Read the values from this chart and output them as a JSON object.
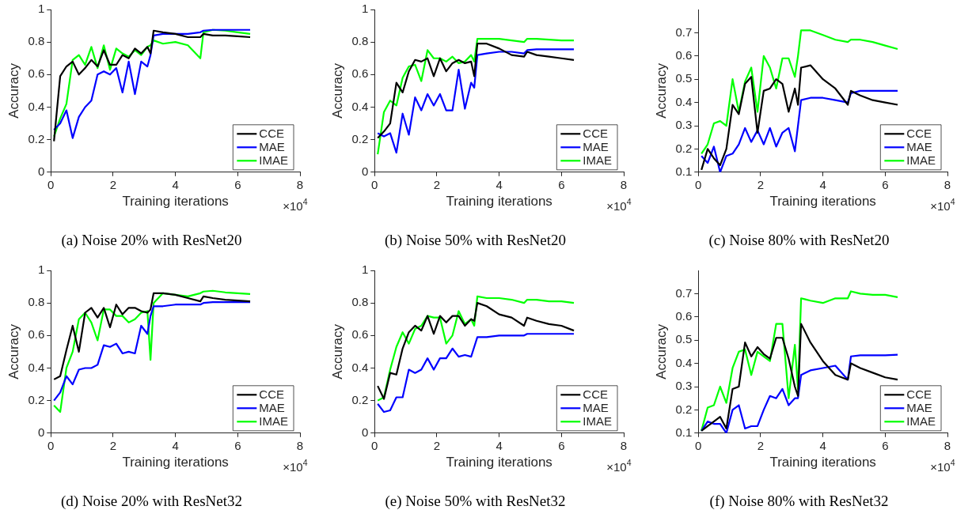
{
  "chart_data": [
    {
      "type": "line",
      "title": "(a) Noise 20% with ResNet20",
      "xlabel": "Training iterations",
      "ylabel": "Accuracy",
      "annotations": [
        "×10$^{4}$"
      ],
      "xlim": [
        0,
        8
      ],
      "xticks": [
        0,
        2,
        4,
        6,
        8
      ],
      "ylim": [
        0,
        1
      ],
      "yticks": [
        0,
        0.2,
        0.4,
        0.6,
        0.8,
        1
      ],
      "grid": false,
      "legend": "bottom right",
      "marker": "none",
      "line_style": "solid",
      "x": [
        0.1,
        0.3,
        0.5,
        0.7,
        0.9,
        1.1,
        1.3,
        1.5,
        1.7,
        1.9,
        2.1,
        2.3,
        2.5,
        2.7,
        2.9,
        3.1,
        3.2,
        3.3,
        3.6,
        4.0,
        4.4,
        4.8,
        4.9,
        5.2,
        5.6,
        6.0,
        6.4
      ],
      "series": [
        {
          "name": "CCE",
          "color": "#000000",
          "values": [
            0.19,
            0.59,
            0.65,
            0.68,
            0.6,
            0.64,
            0.69,
            0.65,
            0.75,
            0.66,
            0.66,
            0.72,
            0.7,
            0.76,
            0.73,
            0.77,
            0.73,
            0.87,
            0.86,
            0.85,
            0.83,
            0.83,
            0.85,
            0.84,
            0.84,
            0.835,
            0.83
          ]
        },
        {
          "name": "MAE",
          "color": "#0000ff",
          "values": [
            0.26,
            0.3,
            0.38,
            0.21,
            0.34,
            0.4,
            0.44,
            0.6,
            0.62,
            0.6,
            0.64,
            0.49,
            0.68,
            0.48,
            0.68,
            0.65,
            0.72,
            0.84,
            0.85,
            0.85,
            0.85,
            0.86,
            0.87,
            0.875,
            0.875,
            0.875,
            0.875
          ]
        },
        {
          "name": "IMAE",
          "color": "#00ff00",
          "values": [
            0.22,
            0.33,
            0.42,
            0.69,
            0.72,
            0.66,
            0.77,
            0.64,
            0.78,
            0.63,
            0.76,
            0.73,
            0.71,
            0.75,
            0.72,
            0.77,
            0.78,
            0.81,
            0.79,
            0.8,
            0.78,
            0.7,
            0.86,
            0.875,
            0.87,
            0.86,
            0.85
          ]
        }
      ]
    },
    {
      "type": "line",
      "title": "(b) Noise 50% with ResNet20",
      "xlabel": "Training iterations",
      "ylabel": "Accuracy",
      "annotations": [
        "×10$^{4}$"
      ],
      "xlim": [
        0,
        8
      ],
      "xticks": [
        0,
        2,
        4,
        6,
        8
      ],
      "ylim": [
        0,
        1
      ],
      "yticks": [
        0,
        0.2,
        0.4,
        0.6,
        0.8,
        1
      ],
      "grid": false,
      "legend": "bottom right",
      "marker": "none",
      "line_style": "solid",
      "x": [
        0.1,
        0.3,
        0.5,
        0.7,
        0.9,
        1.1,
        1.3,
        1.5,
        1.7,
        1.9,
        2.1,
        2.3,
        2.5,
        2.7,
        2.9,
        3.1,
        3.2,
        3.3,
        3.6,
        4.0,
        4.4,
        4.8,
        4.9,
        5.2,
        5.6,
        6.0,
        6.4
      ],
      "series": [
        {
          "name": "CCE",
          "color": "#000000",
          "values": [
            0.21,
            0.25,
            0.3,
            0.55,
            0.49,
            0.62,
            0.69,
            0.68,
            0.7,
            0.59,
            0.7,
            0.62,
            0.67,
            0.69,
            0.67,
            0.68,
            0.59,
            0.79,
            0.79,
            0.76,
            0.72,
            0.71,
            0.74,
            0.72,
            0.71,
            0.7,
            0.69
          ]
        },
        {
          "name": "MAE",
          "color": "#0000ff",
          "values": [
            0.24,
            0.22,
            0.24,
            0.12,
            0.36,
            0.23,
            0.46,
            0.38,
            0.48,
            0.41,
            0.48,
            0.38,
            0.38,
            0.63,
            0.39,
            0.55,
            0.52,
            0.72,
            0.73,
            0.74,
            0.74,
            0.73,
            0.75,
            0.755,
            0.755,
            0.755,
            0.755
          ]
        },
        {
          "name": "IMAE",
          "color": "#00ff00",
          "values": [
            0.11,
            0.37,
            0.44,
            0.41,
            0.58,
            0.65,
            0.66,
            0.56,
            0.75,
            0.7,
            0.7,
            0.68,
            0.71,
            0.67,
            0.68,
            0.72,
            0.68,
            0.82,
            0.82,
            0.82,
            0.81,
            0.8,
            0.82,
            0.82,
            0.815,
            0.81,
            0.81
          ]
        }
      ]
    },
    {
      "type": "line",
      "title": "(c) Noise 80% with ResNet20",
      "xlabel": "Training iterations",
      "ylabel": "Accuracy",
      "annotations": [
        "×10$^{4}$"
      ],
      "xlim": [
        0,
        8
      ],
      "xticks": [
        0,
        2,
        4,
        6,
        8
      ],
      "ylim": [
        0.1,
        0.8
      ],
      "yticks": [
        0.1,
        0.2,
        0.3,
        0.4,
        0.5,
        0.6,
        0.7
      ],
      "grid": false,
      "legend": "bottom right",
      "marker": "none",
      "line_style": "solid",
      "x": [
        0.1,
        0.3,
        0.5,
        0.7,
        0.9,
        1.1,
        1.3,
        1.5,
        1.7,
        1.9,
        2.1,
        2.3,
        2.5,
        2.7,
        2.9,
        3.1,
        3.2,
        3.3,
        3.6,
        4.0,
        4.4,
        4.8,
        4.9,
        5.2,
        5.6,
        6.0,
        6.4
      ],
      "series": [
        {
          "name": "CCE",
          "color": "#000000",
          "values": [
            0.11,
            0.2,
            0.16,
            0.13,
            0.2,
            0.39,
            0.35,
            0.48,
            0.51,
            0.27,
            0.45,
            0.46,
            0.5,
            0.48,
            0.36,
            0.46,
            0.39,
            0.55,
            0.56,
            0.5,
            0.46,
            0.39,
            0.45,
            0.43,
            0.41,
            0.4,
            0.39
          ]
        },
        {
          "name": "MAE",
          "color": "#0000ff",
          "values": [
            0.17,
            0.14,
            0.21,
            0.1,
            0.17,
            0.18,
            0.22,
            0.29,
            0.23,
            0.28,
            0.22,
            0.29,
            0.21,
            0.27,
            0.29,
            0.19,
            0.3,
            0.41,
            0.42,
            0.42,
            0.41,
            0.4,
            0.44,
            0.45,
            0.45,
            0.45,
            0.45
          ]
        },
        {
          "name": "IMAE",
          "color": "#00ff00",
          "values": [
            0.18,
            0.22,
            0.31,
            0.32,
            0.3,
            0.5,
            0.36,
            0.49,
            0.55,
            0.36,
            0.6,
            0.55,
            0.46,
            0.59,
            0.59,
            0.51,
            0.6,
            0.71,
            0.71,
            0.69,
            0.67,
            0.66,
            0.67,
            0.67,
            0.66,
            0.645,
            0.63
          ]
        }
      ]
    },
    {
      "type": "line",
      "title": "(d) Noise 20% with ResNet32",
      "xlabel": "Training iterations",
      "ylabel": "Accuracy",
      "annotations": [
        "×10$^{4}$"
      ],
      "xlim": [
        0,
        8
      ],
      "xticks": [
        0,
        2,
        4,
        6,
        8
      ],
      "ylim": [
        0,
        1
      ],
      "yticks": [
        0,
        0.2,
        0.4,
        0.6,
        0.8,
        1
      ],
      "grid": false,
      "legend": "bottom right",
      "marker": "none",
      "line_style": "solid",
      "x": [
        0.1,
        0.3,
        0.5,
        0.7,
        0.9,
        1.1,
        1.3,
        1.5,
        1.7,
        1.9,
        2.1,
        2.3,
        2.5,
        2.7,
        2.9,
        3.1,
        3.2,
        3.3,
        3.6,
        4.0,
        4.4,
        4.8,
        4.9,
        5.2,
        5.6,
        6.0,
        6.4
      ],
      "series": [
        {
          "name": "CCE",
          "color": "#000000",
          "values": [
            0.33,
            0.35,
            0.51,
            0.66,
            0.5,
            0.74,
            0.77,
            0.71,
            0.77,
            0.65,
            0.79,
            0.73,
            0.77,
            0.77,
            0.75,
            0.74,
            0.76,
            0.86,
            0.86,
            0.85,
            0.83,
            0.81,
            0.84,
            0.83,
            0.82,
            0.815,
            0.81
          ]
        },
        {
          "name": "MAE",
          "color": "#0000ff",
          "values": [
            0.2,
            0.25,
            0.35,
            0.3,
            0.39,
            0.4,
            0.4,
            0.42,
            0.54,
            0.53,
            0.55,
            0.49,
            0.5,
            0.49,
            0.66,
            0.61,
            0.72,
            0.78,
            0.78,
            0.79,
            0.79,
            0.79,
            0.8,
            0.805,
            0.805,
            0.805,
            0.805
          ]
        },
        {
          "name": "IMAE",
          "color": "#00ff00",
          "values": [
            0.17,
            0.13,
            0.4,
            0.5,
            0.7,
            0.74,
            0.68,
            0.57,
            0.76,
            0.76,
            0.72,
            0.72,
            0.68,
            0.7,
            0.74,
            0.75,
            0.45,
            0.8,
            0.86,
            0.85,
            0.84,
            0.86,
            0.87,
            0.875,
            0.865,
            0.86,
            0.855
          ]
        }
      ]
    },
    {
      "type": "line",
      "title": "(e) Noise 50% with ResNet32",
      "xlabel": "Training iterations",
      "ylabel": "Accuracy",
      "annotations": [
        "×10$^{4}$"
      ],
      "xlim": [
        0,
        8
      ],
      "xticks": [
        0,
        2,
        4,
        6,
        8
      ],
      "ylim": [
        0,
        1
      ],
      "yticks": [
        0,
        0.2,
        0.4,
        0.6,
        0.8,
        1
      ],
      "grid": false,
      "legend": "bottom right",
      "marker": "none",
      "line_style": "solid",
      "x": [
        0.1,
        0.3,
        0.5,
        0.7,
        0.9,
        1.1,
        1.3,
        1.5,
        1.7,
        1.9,
        2.1,
        2.3,
        2.5,
        2.7,
        2.9,
        3.1,
        3.2,
        3.3,
        3.6,
        4.0,
        4.4,
        4.8,
        4.9,
        5.2,
        5.6,
        6.0,
        6.4
      ],
      "series": [
        {
          "name": "CCE",
          "color": "#000000",
          "values": [
            0.29,
            0.21,
            0.37,
            0.36,
            0.52,
            0.62,
            0.66,
            0.63,
            0.72,
            0.61,
            0.72,
            0.68,
            0.72,
            0.72,
            0.66,
            0.7,
            0.69,
            0.8,
            0.78,
            0.73,
            0.71,
            0.66,
            0.71,
            0.69,
            0.67,
            0.66,
            0.63
          ]
        },
        {
          "name": "MAE",
          "color": "#0000ff",
          "values": [
            0.18,
            0.13,
            0.14,
            0.22,
            0.22,
            0.39,
            0.37,
            0.39,
            0.46,
            0.39,
            0.46,
            0.46,
            0.52,
            0.47,
            0.48,
            0.47,
            0.53,
            0.59,
            0.59,
            0.6,
            0.6,
            0.6,
            0.61,
            0.61,
            0.61,
            0.61,
            0.61
          ]
        },
        {
          "name": "IMAE",
          "color": "#00ff00",
          "values": [
            0.2,
            0.22,
            0.39,
            0.53,
            0.62,
            0.55,
            0.64,
            0.66,
            0.72,
            0.71,
            0.71,
            0.55,
            0.6,
            0.75,
            0.67,
            0.7,
            0.66,
            0.84,
            0.83,
            0.83,
            0.82,
            0.8,
            0.82,
            0.82,
            0.81,
            0.81,
            0.8
          ]
        }
      ]
    },
    {
      "type": "line",
      "title": "(f) Noise 80% with ResNet32",
      "xlabel": "Training iterations",
      "ylabel": "Accuracy",
      "annotations": [
        "×10$^{4}$"
      ],
      "xlim": [
        0,
        8
      ],
      "xticks": [
        0,
        2,
        4,
        6,
        8
      ],
      "ylim": [
        0.1,
        0.8
      ],
      "yticks": [
        0.1,
        0.2,
        0.3,
        0.4,
        0.5,
        0.6,
        0.7
      ],
      "grid": false,
      "legend": "bottom right",
      "marker": "none",
      "line_style": "solid",
      "x": [
        0.1,
        0.3,
        0.5,
        0.7,
        0.9,
        1.1,
        1.3,
        1.5,
        1.7,
        1.9,
        2.1,
        2.3,
        2.5,
        2.7,
        2.9,
        3.1,
        3.2,
        3.3,
        3.6,
        4.0,
        4.4,
        4.8,
        4.9,
        5.2,
        5.6,
        6.0,
        6.4
      ],
      "series": [
        {
          "name": "CCE",
          "color": "#000000",
          "values": [
            0.11,
            0.13,
            0.15,
            0.17,
            0.12,
            0.29,
            0.3,
            0.49,
            0.43,
            0.47,
            0.44,
            0.42,
            0.51,
            0.51,
            0.42,
            0.3,
            0.26,
            0.57,
            0.49,
            0.41,
            0.35,
            0.33,
            0.4,
            0.38,
            0.36,
            0.34,
            0.33
          ]
        },
        {
          "name": "MAE",
          "color": "#0000ff",
          "values": [
            0.11,
            0.15,
            0.14,
            0.14,
            0.1,
            0.2,
            0.22,
            0.12,
            0.13,
            0.13,
            0.2,
            0.26,
            0.25,
            0.29,
            0.22,
            0.25,
            0.25,
            0.35,
            0.37,
            0.38,
            0.39,
            0.33,
            0.43,
            0.435,
            0.435,
            0.435,
            0.437
          ]
        },
        {
          "name": "IMAE",
          "color": "#00ff00",
          "values": [
            0.11,
            0.21,
            0.22,
            0.3,
            0.23,
            0.38,
            0.45,
            0.46,
            0.35,
            0.45,
            0.43,
            0.41,
            0.57,
            0.57,
            0.25,
            0.48,
            0.29,
            0.68,
            0.67,
            0.66,
            0.68,
            0.68,
            0.71,
            0.7,
            0.695,
            0.695,
            0.685
          ]
        }
      ]
    }
  ]
}
